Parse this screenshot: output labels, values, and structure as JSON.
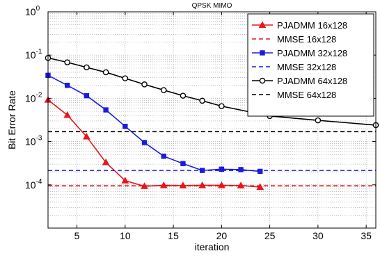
{
  "chart_data": {
    "type": "line",
    "title": "QPSK MIMO",
    "xlabel": "iteration",
    "ylabel": "Bit Error Rate",
    "xlim": [
      2,
      36
    ],
    "ylim": [
      1e-05,
      1
    ],
    "yscale": "log",
    "grid": true,
    "legend_position": "top-right",
    "x_ticks": [
      5,
      10,
      15,
      20,
      25,
      30,
      35
    ],
    "y_ticks": [
      {
        "value": 0.0001,
        "base": "10",
        "exp": "-4"
      },
      {
        "value": 0.001,
        "base": "10",
        "exp": "-3"
      },
      {
        "value": 0.01,
        "base": "10",
        "exp": "-2"
      },
      {
        "value": 0.1,
        "base": "10",
        "exp": "-1"
      },
      {
        "value": 1,
        "base": "10",
        "exp": "0"
      }
    ],
    "series": [
      {
        "name": "PJADMM 16x128",
        "color": "#e8151d",
        "style": "solid",
        "marker": "triangle",
        "x": [
          2,
          4,
          6,
          8,
          10,
          12,
          14,
          16,
          18,
          20,
          22,
          24
        ],
        "y": [
          0.0092,
          0.0041,
          0.0013,
          0.00033,
          0.000125,
          9.3e-05,
          9.75e-05,
          9.65e-05,
          9.75e-05,
          9.75e-05,
          9.65e-05,
          8.9e-05
        ]
      },
      {
        "name": "MMSE  16x128",
        "color": "#e8151d",
        "style": "dashed",
        "marker": "none",
        "x": [
          2,
          36
        ],
        "y": [
          9.5e-05,
          9.5e-05
        ]
      },
      {
        "name": "PJADMM 32x128",
        "color": "#1a1ae0",
        "style": "solid",
        "marker": "square",
        "x": [
          2,
          4,
          6,
          8,
          10,
          12,
          14,
          16,
          18,
          20,
          22,
          24
        ],
        "y": [
          0.034,
          0.02,
          0.0115,
          0.0054,
          0.00225,
          0.00095,
          0.00046,
          0.00031,
          0.000215,
          0.00023,
          0.000225,
          0.000205
        ]
      },
      {
        "name": "MMSE 32x128",
        "color": "#1a1ae0",
        "style": "dashed",
        "marker": "none",
        "x": [
          2,
          36
        ],
        "y": [
          0.000215,
          0.000215
        ]
      },
      {
        "name": "PJADMM 64x128",
        "color": "#000000",
        "style": "solid",
        "marker": "circle",
        "x": [
          2,
          4,
          6,
          8,
          10,
          12,
          14,
          16,
          18,
          20,
          25,
          30,
          36
        ],
        "y": [
          0.086,
          0.068,
          0.052,
          0.04,
          0.029,
          0.021,
          0.0155,
          0.0115,
          0.0088,
          0.0066,
          0.0039,
          0.0031,
          0.0024
        ]
      },
      {
        "name": "MMSE  64x128",
        "color": "#000000",
        "style": "dashed",
        "marker": "none",
        "x": [
          2,
          36
        ],
        "y": [
          0.0017,
          0.0017
        ]
      }
    ]
  }
}
